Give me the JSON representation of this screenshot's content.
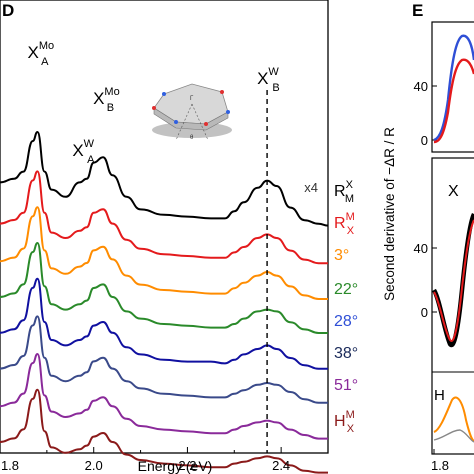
{
  "panels": {
    "left_label": "D",
    "right_label": "E"
  },
  "chart_data": [
    {
      "panel": "D",
      "type": "line",
      "xlabel": "Energy (eV)",
      "xlim": [
        1.8,
        2.5
      ],
      "x_ticks": [
        "1.8",
        "2.0",
        "2.2",
        "2.4"
      ],
      "y_ticks": false,
      "grid": false,
      "reference_line": {
        "x": 2.37,
        "style": "dashed"
      },
      "peak_labels": [
        {
          "base": "X",
          "sub": "A",
          "sup": "Mo",
          "x": 1.88
        },
        {
          "base": "X",
          "sub": "A",
          "sup": "W",
          "x": 1.98
        },
        {
          "base": "X",
          "sub": "B",
          "sup": "Mo",
          "x": 2.02
        },
        {
          "base": "X",
          "sub": "B",
          "sup": "W",
          "x": 2.37
        }
      ],
      "scale_note": "x4",
      "x": [
        1.8,
        1.83,
        1.85,
        1.87,
        1.88,
        1.895,
        1.91,
        1.94,
        1.97,
        1.985,
        2.0,
        2.02,
        2.04,
        2.07,
        2.1,
        2.15,
        2.2,
        2.25,
        2.28,
        2.3,
        2.32,
        2.35,
        2.37,
        2.39,
        2.42,
        2.45,
        2.48,
        2.5
      ],
      "series": [
        {
          "name": "R_M^X",
          "base": "R",
          "sub": "M",
          "sup": "X",
          "label_color": "#000000",
          "color": "#000000",
          "offset": 7.0,
          "values": [
            3.2,
            3.4,
            3.8,
            5.5,
            6.0,
            3.8,
            2.8,
            2.4,
            3.2,
            3.4,
            4.3,
            4.6,
            3.6,
            2.4,
            1.7,
            1.4,
            1.3,
            1.2,
            1.2,
            1.6,
            2.1,
            2.9,
            3.3,
            3.0,
            1.8,
            1.1,
            0.9,
            0.8
          ]
        },
        {
          "name": "R_X^M",
          "base": "R",
          "sub": "X",
          "sup": "M",
          "label_color": "#e41a1c",
          "color": "#e41a1c",
          "offset": 6.0,
          "values": [
            2.8,
            3.0,
            3.4,
            5.2,
            5.7,
            3.4,
            2.3,
            2.0,
            2.4,
            2.6,
            3.4,
            3.6,
            2.8,
            1.9,
            1.4,
            1.1,
            1.0,
            0.9,
            0.9,
            1.2,
            1.5,
            2.0,
            2.2,
            2.0,
            1.3,
            0.8,
            0.6,
            0.6
          ]
        },
        {
          "name": "3°",
          "base": "3°",
          "label_color": "#ff8c00",
          "color": "#ff8c00",
          "offset": 5.0,
          "values": [
            2.6,
            2.8,
            3.3,
            5.1,
            5.6,
            3.2,
            2.2,
            1.9,
            2.3,
            2.5,
            3.2,
            3.4,
            2.7,
            1.8,
            1.3,
            1.0,
            0.9,
            0.8,
            0.8,
            1.1,
            1.4,
            1.8,
            2.0,
            1.8,
            1.2,
            0.7,
            0.5,
            0.5
          ]
        },
        {
          "name": "22°",
          "base": "22°",
          "label_color": "#2a8a2a",
          "color": "#2a8a2a",
          "offset": 4.0,
          "values": [
            2.5,
            2.7,
            3.2,
            5.0,
            5.5,
            3.1,
            2.1,
            1.8,
            2.1,
            2.3,
            3.0,
            3.2,
            2.5,
            1.7,
            1.3,
            1.0,
            0.9,
            0.8,
            0.8,
            1.0,
            1.3,
            1.7,
            1.8,
            1.7,
            1.1,
            0.7,
            0.5,
            0.5
          ]
        },
        {
          "name": "28°",
          "base": "28°",
          "label_color": "#2f4fd6",
          "color": "#1010a0",
          "offset": 3.0,
          "values": [
            2.4,
            2.6,
            3.1,
            4.9,
            5.4,
            3.0,
            2.0,
            1.7,
            2.0,
            2.2,
            2.8,
            3.0,
            2.4,
            1.6,
            1.2,
            0.9,
            0.8,
            0.8,
            0.7,
            0.9,
            1.2,
            1.5,
            1.7,
            1.5,
            1.0,
            0.6,
            0.4,
            0.4
          ]
        },
        {
          "name": "38°",
          "base": "38°",
          "label_color": "#1a2a5a",
          "color": "#3a4a8a",
          "offset": 2.0,
          "values": [
            2.3,
            2.5,
            3.0,
            4.7,
            5.2,
            2.9,
            1.9,
            1.6,
            1.9,
            2.1,
            2.7,
            2.9,
            2.3,
            1.6,
            1.2,
            0.9,
            0.8,
            0.7,
            0.7,
            0.9,
            1.1,
            1.4,
            1.5,
            1.4,
            1.0,
            0.6,
            0.4,
            0.4
          ]
        },
        {
          "name": "51°",
          "base": "51°",
          "label_color": "#8a2a9a",
          "color": "#8a2a9a",
          "offset": 1.0,
          "values": [
            2.1,
            2.3,
            2.8,
            4.5,
            5.0,
            2.7,
            1.8,
            1.5,
            1.7,
            1.9,
            2.4,
            2.6,
            2.1,
            1.4,
            1.0,
            0.8,
            0.7,
            0.6,
            0.6,
            0.8,
            1.0,
            1.2,
            1.3,
            1.2,
            0.8,
            0.5,
            0.3,
            0.3
          ]
        },
        {
          "name": "H_X^M",
          "base": "H",
          "sub": "X",
          "sup": "M",
          "label_color": "#8b1a1a",
          "color": "#8b1a1a",
          "offset": 0.0,
          "values": [
            2.0,
            2.2,
            2.7,
            4.4,
            4.9,
            2.6,
            1.7,
            1.4,
            1.6,
            1.8,
            2.3,
            2.5,
            2.0,
            1.3,
            1.0,
            0.8,
            0.7,
            0.6,
            0.6,
            0.8,
            0.9,
            1.1,
            1.2,
            1.1,
            0.7,
            0.4,
            0.3,
            0.3
          ]
        }
      ]
    },
    {
      "panel": "E",
      "type": "line",
      "ylabel": "Second derivative of −ΔR / R",
      "x_ticks": [
        "1.8"
      ],
      "y_ticks_top": [
        "40",
        "0"
      ],
      "y_ticks_bottom": [
        "40",
        "0"
      ],
      "visible_labels": [
        "X",
        "H"
      ],
      "series": [
        {
          "color": "#e41a1c",
          "subpanel": "top"
        },
        {
          "color": "#2f4fd6",
          "subpanel": "top"
        },
        {
          "color": "#000000",
          "subpanel": "bottom"
        },
        {
          "color": "#e41a1c",
          "subpanel": "bottom"
        },
        {
          "color": "#ff8c00",
          "subpanel": "bottom-inset"
        }
      ]
    }
  ]
}
